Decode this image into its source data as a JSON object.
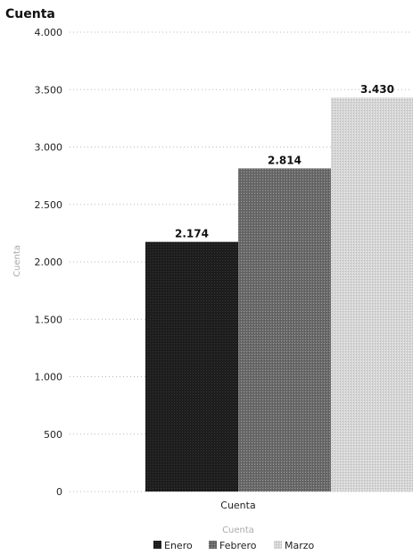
{
  "chart_data": {
    "type": "bar",
    "title": "Cuenta",
    "ylabel": "Cuenta",
    "xlabel": "Cuenta",
    "categories": [
      "Cuenta"
    ],
    "series": [
      {
        "name": "Enero",
        "values": [
          2174
        ],
        "label": "2.174",
        "color": "#1f1f1f"
      },
      {
        "name": "Febrero",
        "values": [
          2814
        ],
        "label": "2.814",
        "color": "#7a7a7a"
      },
      {
        "name": "Marzo",
        "values": [
          3430
        ],
        "label": "3.430",
        "color": "#d4d4d4"
      }
    ],
    "ylim": [
      0,
      4000
    ],
    "yticks": [
      0,
      500,
      1000,
      1500,
      2000,
      2500,
      3000,
      3500,
      4000
    ],
    "ytick_labels": [
      "0",
      "500",
      "1.000",
      "1.500",
      "2.000",
      "2.500",
      "3.000",
      "3.500",
      "4.000"
    ],
    "grid": true,
    "legend_position": "bottom"
  }
}
